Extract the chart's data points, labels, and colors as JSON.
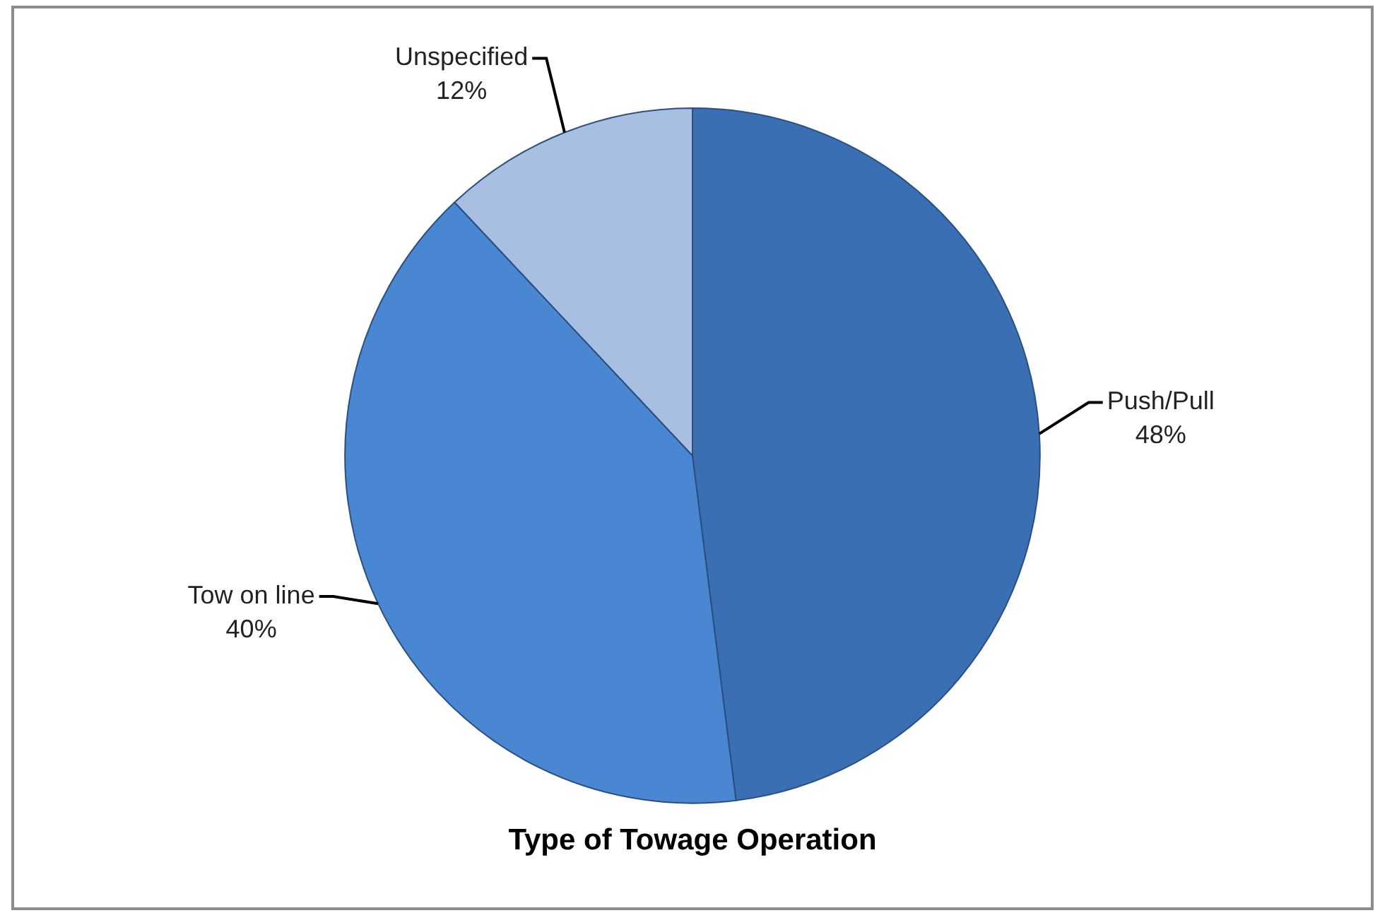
{
  "chart_data": {
    "type": "pie",
    "title": "Type of Towage Operation",
    "categories": [
      "Push/Pull",
      "Tow on line",
      "Unspecified"
    ],
    "values": [
      48,
      40,
      12
    ],
    "colors": [
      "#3b6fb3",
      "#4a87d2",
      "#a9bfe2"
    ],
    "value_labels": [
      "48%",
      "40%",
      "12%"
    ],
    "legend": false
  }
}
